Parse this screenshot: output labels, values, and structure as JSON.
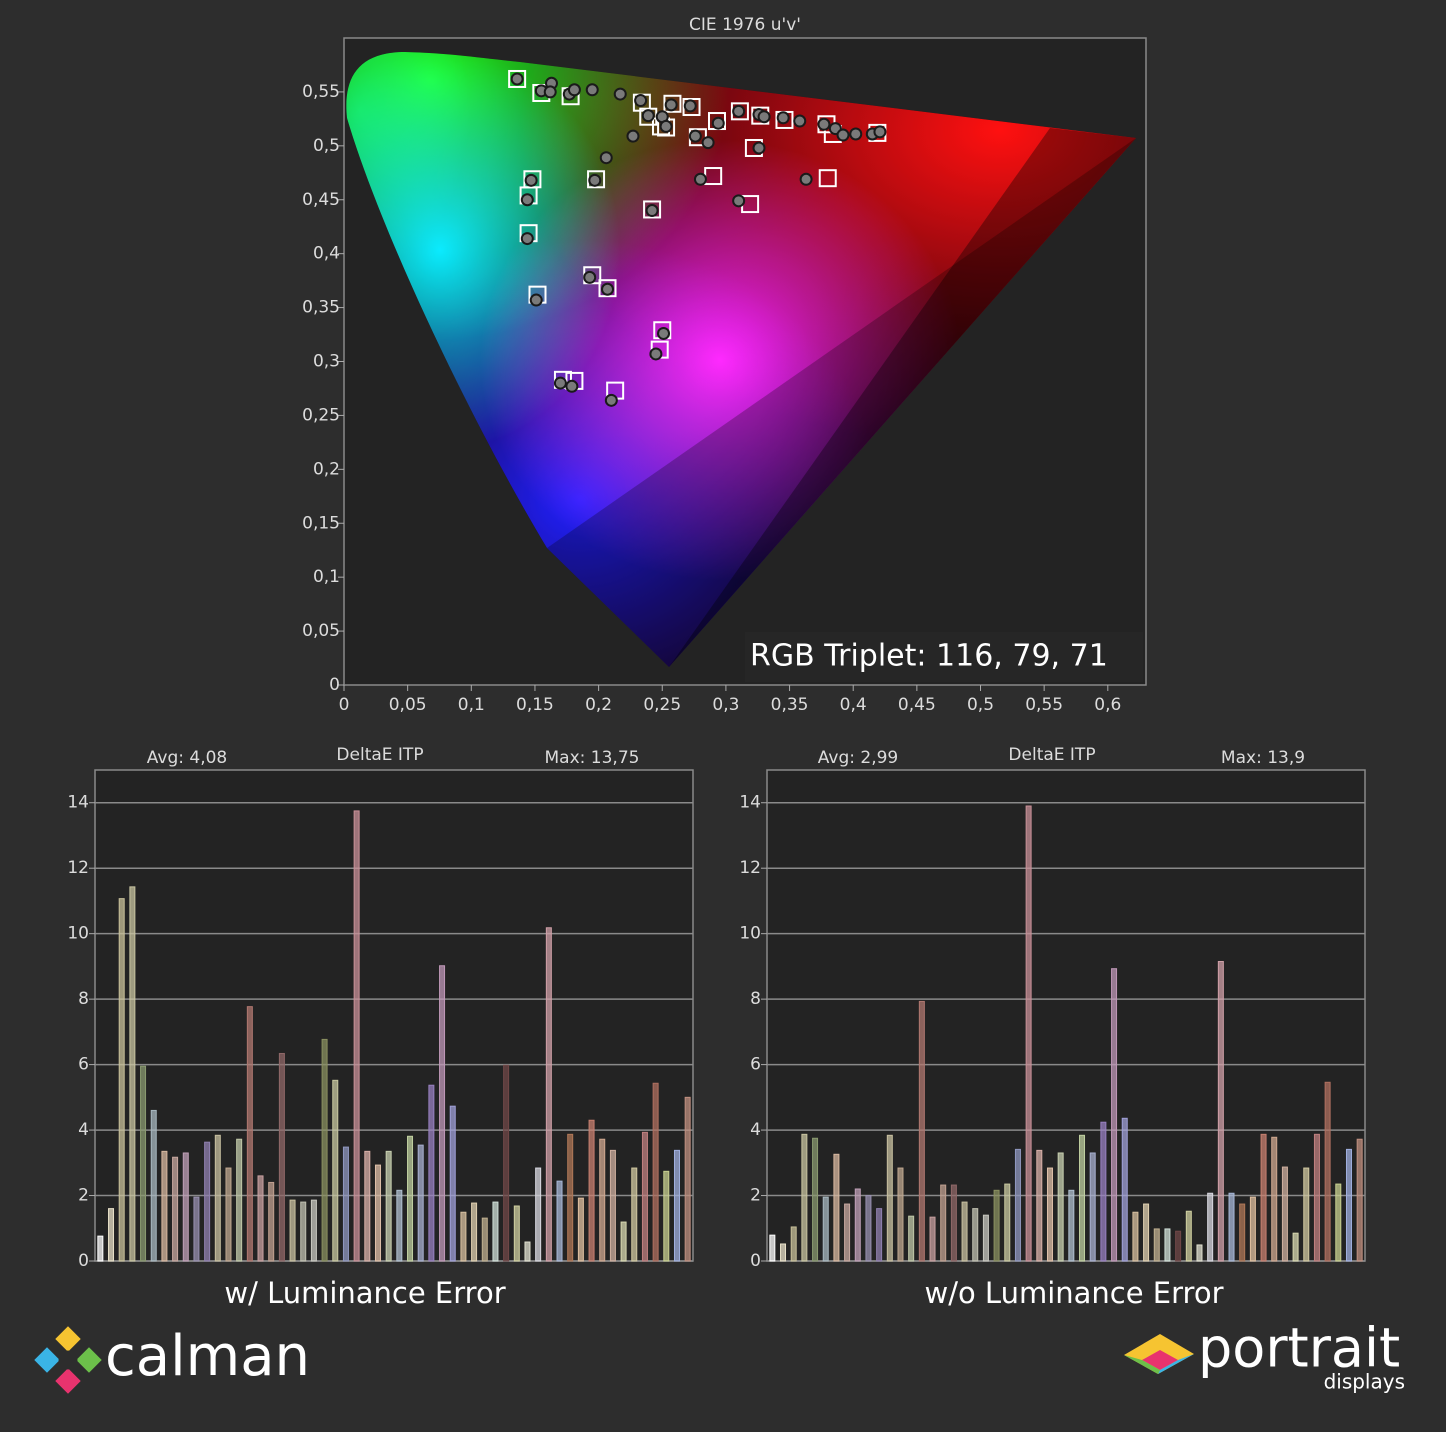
{
  "chart_data": [
    {
      "type": "scatter",
      "title": "CIE 1976 u'v'",
      "annotation": "RGB Triplet: 116, 79, 71",
      "xlim": [
        0,
        0.63
      ],
      "ylim": [
        0,
        0.6
      ],
      "xticks": [
        0,
        {
          "value": 0.05,
          "label": "0,05"
        },
        {
          "value": 0.1,
          "label": "0,1"
        },
        {
          "value": 0.15,
          "label": "0,15"
        },
        {
          "value": 0.2,
          "label": "0,2"
        },
        {
          "value": 0.25,
          "label": "0,25"
        },
        {
          "value": 0.3,
          "label": "0,3"
        },
        {
          "value": 0.35,
          "label": "0,35"
        },
        {
          "value": 0.4,
          "label": "0,4"
        },
        {
          "value": 0.45,
          "label": "0,45"
        },
        {
          "value": 0.5,
          "label": "0,5"
        },
        {
          "value": 0.55,
          "label": "0,55"
        },
        {
          "value": 0.6,
          "label": "0,6"
        }
      ],
      "yticks": [
        0,
        {
          "value": 0.05,
          "label": "0,05"
        },
        {
          "value": 0.1,
          "label": "0,1"
        },
        {
          "value": 0.15,
          "label": "0,15"
        },
        {
          "value": 0.2,
          "label": "0,2"
        },
        {
          "value": 0.25,
          "label": "0,25"
        },
        {
          "value": 0.3,
          "label": "0,3"
        },
        {
          "value": 0.35,
          "label": "0,35"
        },
        {
          "value": 0.4,
          "label": "0,4"
        },
        {
          "value": 0.45,
          "label": "0,45"
        },
        {
          "value": 0.5,
          "label": "0,5"
        },
        {
          "value": 0.55,
          "label": "0,55"
        }
      ],
      "series": [
        {
          "marker": "square",
          "color": "#ffffff",
          "x": [
            0.136,
            0.155,
            0.178,
            0.234,
            0.239,
            0.253,
            0.258,
            0.273,
            0.278,
            0.293,
            0.311,
            0.327,
            0.346,
            0.379,
            0.384,
            0.419,
            0.322,
            0.29,
            0.198,
            0.148,
            0.145,
            0.145,
            0.152,
            0.195,
            0.207,
            0.25,
            0.248,
            0.172,
            0.181,
            0.213,
            0.242,
            0.319,
            0.38,
            0.249
          ],
          "y": [
            0.562,
            0.549,
            0.546,
            0.54,
            0.527,
            0.517,
            0.539,
            0.536,
            0.508,
            0.523,
            0.532,
            0.528,
            0.524,
            0.52,
            0.511,
            0.512,
            0.498,
            0.472,
            0.469,
            0.469,
            0.454,
            0.419,
            0.362,
            0.38,
            0.368,
            0.329,
            0.311,
            0.283,
            0.282,
            0.273,
            0.441,
            0.446,
            0.47,
            0.518
          ]
        },
        {
          "marker": "circle",
          "color": "#7a7a7a",
          "x": [
            0.136,
            0.155,
            0.163,
            0.162,
            0.177,
            0.181,
            0.195,
            0.217,
            0.233,
            0.239,
            0.25,
            0.253,
            0.257,
            0.272,
            0.227,
            0.276,
            0.286,
            0.294,
            0.31,
            0.326,
            0.33,
            0.345,
            0.358,
            0.377,
            0.386,
            0.392,
            0.402,
            0.415,
            0.421,
            0.206,
            0.197,
            0.28,
            0.31,
            0.326,
            0.363,
            0.242,
            0.147,
            0.144,
            0.144,
            0.151,
            0.193,
            0.207,
            0.251,
            0.245,
            0.17,
            0.179,
            0.21
          ],
          "y": [
            0.562,
            0.551,
            0.558,
            0.55,
            0.548,
            0.552,
            0.552,
            0.548,
            0.542,
            0.528,
            0.527,
            0.518,
            0.538,
            0.537,
            0.509,
            0.509,
            0.503,
            0.521,
            0.532,
            0.529,
            0.527,
            0.526,
            0.523,
            0.52,
            0.516,
            0.51,
            0.511,
            0.511,
            0.513,
            0.489,
            0.468,
            0.469,
            0.449,
            0.498,
            0.469,
            0.44,
            0.468,
            0.45,
            0.414,
            0.357,
            0.378,
            0.367,
            0.326,
            0.307,
            0.28,
            0.277,
            0.264
          ]
        }
      ]
    },
    {
      "type": "bar",
      "title": "DeltaE ITP",
      "avg_label": "Avg: 4,08",
      "max_label": "Max: 13,75",
      "x_label": "w/ Luminance Error",
      "ylim": [
        0,
        15
      ],
      "yticks": [
        0,
        2,
        4,
        6,
        8,
        10,
        12,
        14
      ],
      "grid": true,
      "values": [
        0.76,
        1.6,
        11.07,
        11.43,
        5.95,
        4.6,
        3.35,
        3.17,
        3.3,
        1.95,
        3.63,
        3.84,
        2.84,
        3.72,
        7.77,
        2.6,
        2.4,
        6.34,
        1.86,
        1.8,
        1.86,
        6.77,
        5.52,
        3.48,
        13.75,
        3.35,
        2.93,
        3.35,
        2.16,
        3.81,
        3.54,
        5.37,
        9.02,
        4.73,
        1.49,
        1.77,
        1.31,
        1.8,
        5.98,
        1.68,
        0.58,
        2.84,
        10.18,
        2.44,
        3.87,
        1.92,
        4.3,
        3.72,
        3.38,
        1.19,
        2.84,
        3.93,
        5.43,
        2.74,
        3.38,
        5.0
      ],
      "colors": [
        "#ffffff",
        "#e8e0c8",
        "#c8c09a",
        "#c8c4a0",
        "#8a9a70",
        "#a8b8c0",
        "#d8b8a0",
        "#c8a8a0",
        "#c0a0b8",
        "#9890b0",
        "#9080b0",
        "#c8c0a0",
        "#c0a890",
        "#c0c8a8",
        "#b07870",
        "#c8a0a0",
        "#c0a090",
        "#906868",
        "#c8c0a0",
        "#c0c0b0",
        "#c8c8c0",
        "#8a9060",
        "#c8c8a0",
        "#9098c0",
        "#c89098",
        "#d8b0a8",
        "#e0c0a8",
        "#c8d0b0",
        "#b0c0d0",
        "#c0d0a0",
        "#a8b0d0",
        "#9880c0",
        "#c098b8",
        "#a0a0d8",
        "#d8c0a0",
        "#e0d0b0",
        "#c0b090",
        "#d0e0d8",
        "#704848",
        "#d0d0a0",
        "#e0e0d0",
        "#d8d8e0",
        "#d0a0a8",
        "#a8b8d8",
        "#b07858",
        "#e0c0a0",
        "#c88070",
        "#d0a890",
        "#d0b0a0",
        "#d8d8b0",
        "#d0c8a0",
        "#c08080",
        "#b07060",
        "#c8d090",
        "#a0b0e0",
        "#c09080"
      ]
    },
    {
      "type": "bar",
      "title": "DeltaE ITP",
      "avg_label": "Avg: 2,99",
      "max_label": "Max: 13,9",
      "x_label": "w/o Luminance Error",
      "ylim": [
        0,
        15
      ],
      "yticks": [
        0,
        2,
        4,
        6,
        8,
        10,
        12,
        14
      ],
      "grid": true,
      "values": [
        0.79,
        0.52,
        1.04,
        3.87,
        3.75,
        1.95,
        3.26,
        1.74,
        2.2,
        2.0,
        1.6,
        3.84,
        2.84,
        1.37,
        7.93,
        1.34,
        2.32,
        2.32,
        1.8,
        1.6,
        1.4,
        2.16,
        2.35,
        3.41,
        13.9,
        3.38,
        2.84,
        3.3,
        2.16,
        3.84,
        3.3,
        4.24,
        8.93,
        4.36,
        1.49,
        1.74,
        0.98,
        0.98,
        0.91,
        1.52,
        0.49,
        2.07,
        9.15,
        2.07,
        1.74,
        1.95,
        3.87,
        3.78,
        2.87,
        0.85,
        2.84,
        3.87,
        5.46,
        2.35,
        3.41,
        3.72
      ],
      "colors": [
        "#ffffff",
        "#e8e0c8",
        "#c8c09a",
        "#c8c4a0",
        "#8a9a70",
        "#a8b8c0",
        "#d8b8a0",
        "#c8a8a0",
        "#c0a0b8",
        "#9890b0",
        "#9080b0",
        "#c8c0a0",
        "#c0a890",
        "#c0c8a8",
        "#b07870",
        "#c8a0a0",
        "#c0a090",
        "#906868",
        "#c8c0a0",
        "#c0c0b0",
        "#c8c8c0",
        "#8a9060",
        "#c8c8a0",
        "#9098c0",
        "#c89098",
        "#d8b0a8",
        "#e0c0a8",
        "#c8d0b0",
        "#b0c0d0",
        "#c0d0a0",
        "#a8b0d0",
        "#9880c0",
        "#c098b8",
        "#a0a0d8",
        "#d8c0a0",
        "#e0d0b0",
        "#c0b090",
        "#d0e0d8",
        "#704848",
        "#d0d0a0",
        "#e0e0d0",
        "#d8d8e0",
        "#d0a0a8",
        "#a8b8d8",
        "#b07858",
        "#e0c0a0",
        "#c88070",
        "#d0a890",
        "#d0b0a0",
        "#d8d8b0",
        "#d0c8a0",
        "#c08080",
        "#b07060",
        "#c8d090",
        "#a0b0e0",
        "#c09080"
      ]
    }
  ],
  "logos": {
    "left": "calman",
    "right": "portrait",
    "right_sub": "displays"
  }
}
